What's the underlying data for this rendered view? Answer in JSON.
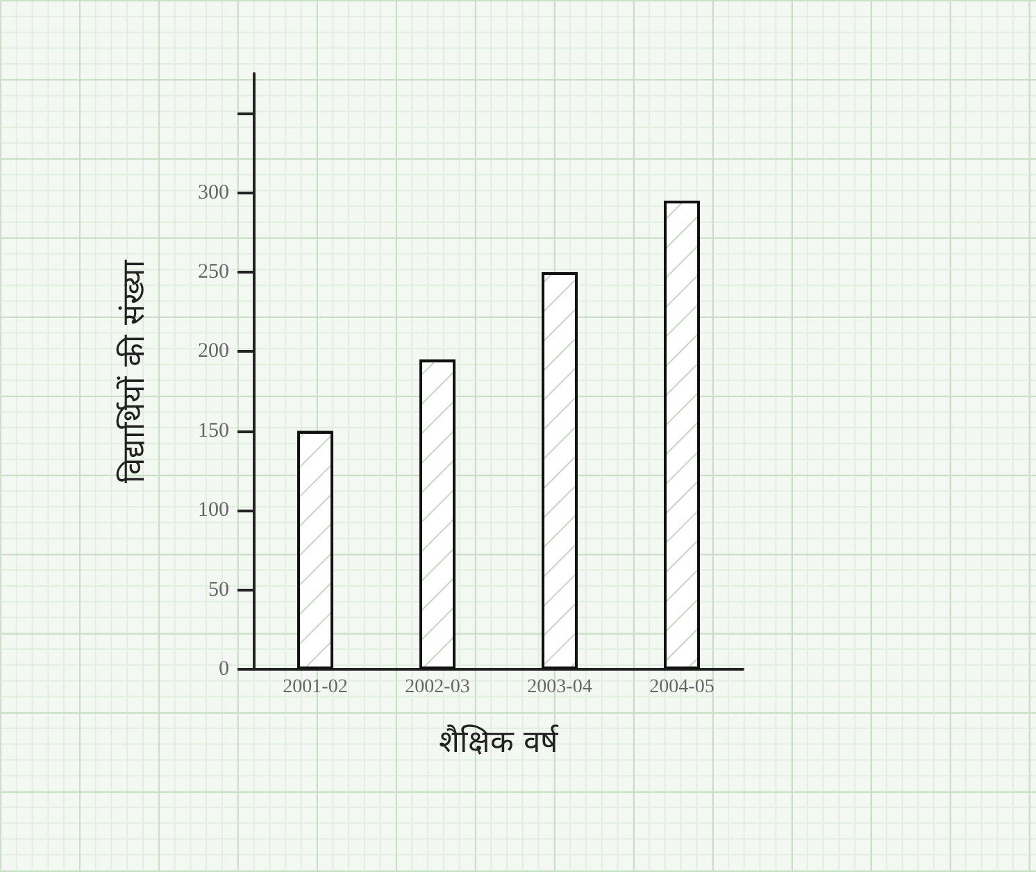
{
  "chart_data": {
    "type": "bar",
    "xlabel": "शैक्षिक वर्ष",
    "ylabel": "विद्यार्थियों की संख्या",
    "categories": [
      "2001-02",
      "2002-03",
      "2003-04",
      "2004-05"
    ],
    "values": [
      150,
      195,
      250,
      295
    ],
    "color": "#ffffff",
    "ylim": [
      0,
      375
    ],
    "yticks": [
      0,
      50,
      100,
      150,
      200,
      250,
      300,
      {
        "value": 350,
        "label": null
      }
    ],
    "grid": false
  }
}
